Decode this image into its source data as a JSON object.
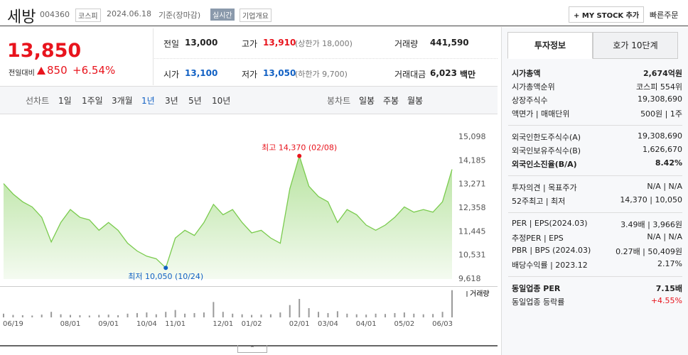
{
  "header": {
    "name": "세방",
    "code": "004360",
    "market": "코스피",
    "date": "2024.06.18",
    "basis": "기준(장마감)",
    "realtime": "실시간",
    "company_info": "기업개요",
    "mystock_button": "MY STOCK 추가",
    "quick_order": "빠른주문"
  },
  "quote": {
    "price": "13,850",
    "change_label": "전일대비",
    "change": "850",
    "change_rate": "+6.54%"
  },
  "stats": [
    {
      "label": "전일",
      "value": "13,000"
    },
    {
      "label": "고가",
      "value": "13,910",
      "note": "(상한가 18,000)",
      "color": "#e8141d"
    },
    {
      "label": "거래량",
      "value": "441,590"
    },
    {
      "label": "시가",
      "value": "13,100",
      "color": "#1261c4"
    },
    {
      "label": "저가",
      "value": "13,050",
      "note": "(하한가 9,700)",
      "color": "#1261c4"
    },
    {
      "label": "거래대금",
      "value": "6,023",
      "unit": "백만"
    }
  ],
  "chart_tabs": {
    "line_label": "선차트",
    "line_periods": [
      "1일",
      "1주일",
      "3개월",
      "1년",
      "3년",
      "5년",
      "10년"
    ],
    "selected_index": 3,
    "candle_label": "봉차트",
    "candle_periods": [
      "일봉",
      "주봉",
      "월봉"
    ]
  },
  "chart_data": {
    "type": "area",
    "color": "#7acb4e",
    "grid": false,
    "categories": [
      null,
      "06/19",
      null,
      null,
      null,
      null,
      null,
      "08/01",
      null,
      null,
      null,
      "09/01",
      null,
      null,
      null,
      "10/04",
      null,
      null,
      "11/01",
      null,
      null,
      null,
      null,
      "12/01",
      null,
      null,
      "01/02",
      null,
      null,
      null,
      null,
      "02/01",
      null,
      null,
      "03/04",
      null,
      null,
      null,
      "04/01",
      null,
      null,
      null,
      "05/02",
      null,
      null,
      null,
      "06/03",
      null
    ],
    "values": [
      13300,
      12900,
      12600,
      12400,
      12000,
      11050,
      11800,
      12300,
      12000,
      11900,
      11500,
      11800,
      11500,
      11000,
      10700,
      10500,
      10400,
      10050,
      11200,
      11500,
      11300,
      11800,
      12500,
      12100,
      12300,
      11800,
      11400,
      11500,
      11200,
      11000,
      13100,
      14370,
      13200,
      12800,
      12600,
      11800,
      12300,
      12100,
      11700,
      11500,
      11700,
      12000,
      12400,
      12200,
      12300,
      12200,
      12600,
      13850
    ],
    "ylim": [
      9618,
      15098
    ],
    "yticks": [
      {
        "value": 15098,
        "label": "15,098"
      },
      {
        "value": 14185,
        "label": "14,185"
      },
      {
        "value": 13271,
        "label": "13,271"
      },
      {
        "value": 12358,
        "label": "12,358"
      },
      {
        "value": 11445,
        "label": "11,445"
      },
      {
        "value": 10531,
        "label": "10,531"
      },
      {
        "value": 9618,
        "label": "9,618"
      }
    ],
    "annotations": {
      "high": "최고 14,370 (02/08)",
      "low": "최저 10,050 (10/24)"
    },
    "volume": {
      "name": "거래량",
      "color": "#9a9a9a",
      "ylim": [
        0,
        450000
      ],
      "values": [
        60000,
        40000,
        35000,
        30000,
        45000,
        90000,
        50000,
        40000,
        35000,
        30000,
        40000,
        45000,
        35000,
        60000,
        70000,
        80000,
        50000,
        90000,
        120000,
        60000,
        70000,
        80000,
        250000,
        90000,
        60000,
        50000,
        40000,
        45000,
        50000,
        80000,
        200000,
        300000,
        150000,
        90000,
        70000,
        100000,
        60000,
        50000,
        45000,
        60000,
        55000,
        70000,
        80000,
        60000,
        50000,
        55000,
        90000,
        441590
      ]
    }
  },
  "invest_info": {
    "tabs": [
      "투자정보",
      "호가 10단계"
    ],
    "sections": [
      [
        {
          "label": "시가총액",
          "value": "2,674억원",
          "bold": true
        },
        {
          "label": "시가총액순위",
          "value": "코스피 554위"
        },
        {
          "label": "상장주식수",
          "value": "19,308,690"
        },
        {
          "label": "액면가 | 매매단위",
          "value": "500원 | 1주"
        }
      ],
      [
        {
          "label": "외국인한도주식수(A)",
          "value": "19,308,690"
        },
        {
          "label": "외국인보유주식수(B)",
          "value": "1,626,670"
        },
        {
          "label": "외국인소진율(B/A)",
          "value": "8.42%",
          "bold": true
        }
      ],
      [
        {
          "label": "투자의견 | 목표주가",
          "value": "N/A | N/A"
        },
        {
          "label": "52주최고 | 최저",
          "value": "14,370 | 10,050"
        }
      ],
      [
        {
          "label": "PER | EPS(2024.03)",
          "value": "3.49배 | 3,966원"
        },
        {
          "label": "추정PER | EPS",
          "value": "N/A | N/A"
        },
        {
          "label": "PBR | BPS (2024.03)",
          "value": "0.27배 | 50,409원"
        },
        {
          "label": "배당수익률 | 2023.12",
          "value": "2.17%"
        }
      ],
      [
        {
          "label": "동일업종 PER",
          "value": "7.15배",
          "bold": true
        },
        {
          "label": "동일업종 등락률",
          "value": "+4.55%",
          "color": "#e8141d"
        }
      ]
    ]
  }
}
